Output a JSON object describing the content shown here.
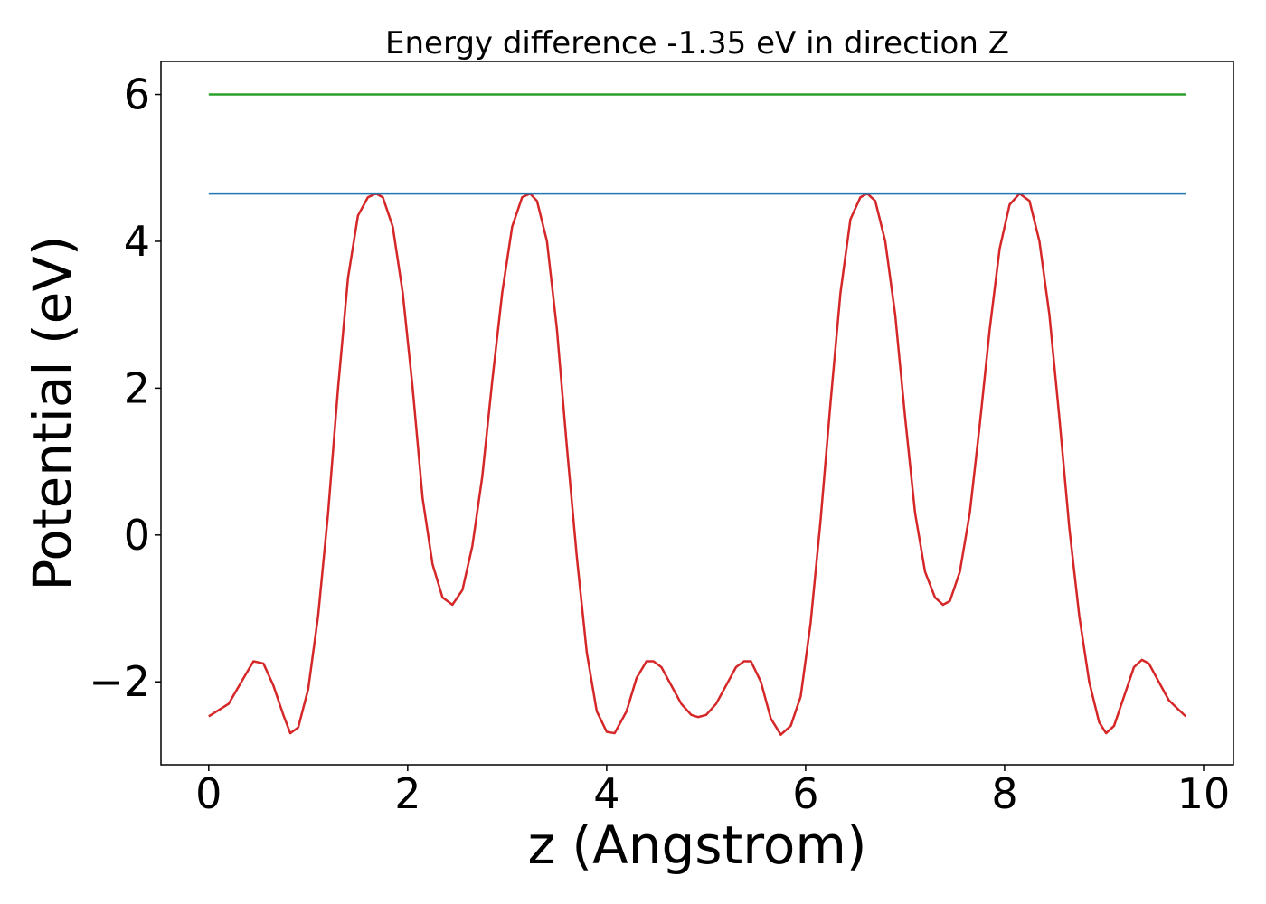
{
  "chart_data": {
    "type": "line",
    "title": "Energy difference -1.35 eV in direction Z",
    "xlabel": "z (Angstrom)",
    "ylabel": "Potential (eV)",
    "xlim": [
      -0.48,
      10.3
    ],
    "ylim": [
      -3.13,
      6.45
    ],
    "xticks": [
      0,
      2,
      4,
      6,
      8,
      10
    ],
    "yticks": [
      -2,
      0,
      2,
      4,
      6
    ],
    "xtick_labels": [
      "0",
      "2",
      "4",
      "6",
      "8",
      "10"
    ],
    "ytick_labels": [
      "−2",
      "0",
      "2",
      "4",
      "6"
    ],
    "grid": false,
    "legend": "none",
    "series": [
      {
        "color": "#d62728",
        "x": [
          0.0,
          0.2,
          0.35,
          0.45,
          0.55,
          0.65,
          0.75,
          0.82,
          0.9,
          1.0,
          1.1,
          1.2,
          1.3,
          1.4,
          1.5,
          1.6,
          1.68,
          1.75,
          1.85,
          1.95,
          2.05,
          2.15,
          2.25,
          2.35,
          2.45,
          2.55,
          2.65,
          2.75,
          2.85,
          2.95,
          3.05,
          3.15,
          3.23,
          3.3,
          3.4,
          3.5,
          3.6,
          3.7,
          3.8,
          3.9,
          4.0,
          4.08,
          4.2,
          4.3,
          4.4,
          4.47,
          4.55,
          4.65,
          4.75,
          4.85,
          4.92,
          5.0,
          5.1,
          5.2,
          5.3,
          5.38,
          5.45,
          5.55,
          5.65,
          5.75,
          5.85,
          5.95,
          6.05,
          6.15,
          6.25,
          6.35,
          6.45,
          6.55,
          6.62,
          6.7,
          6.8,
          6.9,
          7.0,
          7.1,
          7.2,
          7.3,
          7.38,
          7.45,
          7.55,
          7.65,
          7.75,
          7.85,
          7.95,
          8.05,
          8.15,
          8.25,
          8.35,
          8.45,
          8.55,
          8.65,
          8.75,
          8.85,
          8.95,
          9.02,
          9.1,
          9.2,
          9.3,
          9.38,
          9.45,
          9.55,
          9.65,
          9.75,
          9.82
        ],
        "y": [
          -2.47,
          -2.3,
          -1.95,
          -1.72,
          -1.75,
          -2.05,
          -2.45,
          -2.7,
          -2.62,
          -2.1,
          -1.1,
          0.3,
          2.0,
          3.5,
          4.35,
          4.6,
          4.65,
          4.6,
          4.2,
          3.3,
          2.0,
          0.5,
          -0.4,
          -0.85,
          -0.95,
          -0.75,
          -0.15,
          0.8,
          2.1,
          3.3,
          4.2,
          4.6,
          4.65,
          4.55,
          4.0,
          2.8,
          1.2,
          -0.3,
          -1.6,
          -2.4,
          -2.68,
          -2.7,
          -2.4,
          -1.95,
          -1.72,
          -1.72,
          -1.8,
          -2.05,
          -2.3,
          -2.45,
          -2.48,
          -2.45,
          -2.3,
          -2.05,
          -1.8,
          -1.72,
          -1.72,
          -2.0,
          -2.5,
          -2.72,
          -2.6,
          -2.2,
          -1.2,
          0.2,
          1.8,
          3.3,
          4.3,
          4.6,
          4.65,
          4.55,
          4.0,
          3.0,
          1.6,
          0.3,
          -0.5,
          -0.85,
          -0.95,
          -0.9,
          -0.5,
          0.3,
          1.5,
          2.8,
          3.9,
          4.5,
          4.65,
          4.55,
          4.0,
          3.0,
          1.6,
          0.1,
          -1.1,
          -2.0,
          -2.55,
          -2.7,
          -2.6,
          -2.2,
          -1.8,
          -1.7,
          -1.75,
          -2.0,
          -2.25,
          -2.38,
          -2.47
        ]
      },
      {
        "color": "#1f77b4",
        "x": [
          0.0,
          9.82
        ],
        "y": [
          4.65,
          4.65
        ]
      },
      {
        "color": "#2ca02c",
        "x": [
          0.0,
          9.82
        ],
        "y": [
          6.0,
          6.0
        ]
      }
    ]
  }
}
